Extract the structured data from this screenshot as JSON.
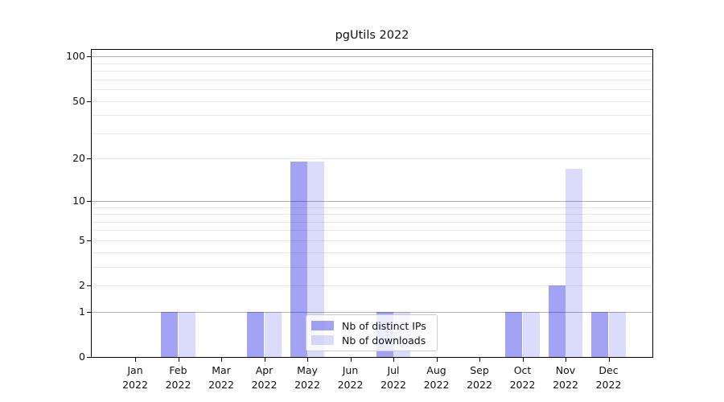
{
  "chart_data": {
    "type": "bar",
    "title": "pgUtils 2022",
    "categories": [
      "Jan",
      "Feb",
      "Mar",
      "Apr",
      "May",
      "Jun",
      "Jul",
      "Aug",
      "Sep",
      "Oct",
      "Nov",
      "Dec"
    ],
    "category_year": "2022",
    "series": [
      {
        "name": "Nb of distinct IPs",
        "color": "rgba(0,0,230,0.36)",
        "values": [
          0,
          1,
          0,
          1,
          19,
          0,
          1,
          0,
          0,
          1,
          2,
          1
        ]
      },
      {
        "name": "Nb of downloads",
        "color": "rgba(0,0,230,0.14)",
        "values": [
          0,
          1,
          0,
          1,
          19,
          0,
          1,
          0,
          0,
          1,
          17,
          1
        ]
      }
    ],
    "y_axis": {
      "scale": "log1p",
      "tick_values": [
        0,
        1,
        2,
        5,
        10,
        20,
        50,
        100
      ],
      "gridlines_light": [
        2,
        3,
        4,
        5,
        6,
        7,
        8,
        9,
        20,
        30,
        40,
        50,
        60,
        70,
        80,
        90
      ],
      "gridlines_dark": [
        1,
        10,
        100
      ],
      "range_min": 0,
      "range_max": 110
    },
    "legend": {
      "position": "lower-center"
    },
    "grid": true
  },
  "colors": {
    "grid_light": "#e9e9e9",
    "grid_dark": "#b3b3b3",
    "spine": "#000000",
    "text": "#111111",
    "legend_border": "#cccccc",
    "legend_bg": "rgba(255,255,255,0.8)"
  }
}
